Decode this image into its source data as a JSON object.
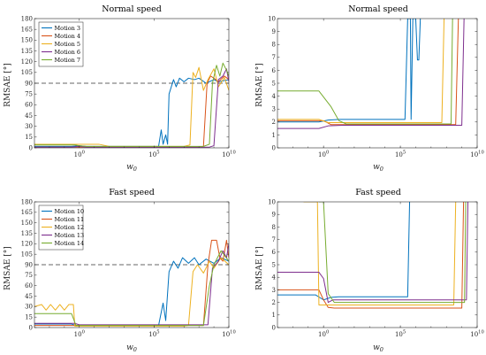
{
  "chart_data": [
    {
      "type": "line",
      "title": "Normal speed",
      "xlabel": "w0",
      "ylabel": "RMSAE [°]",
      "xscale": "log",
      "xlim": [
        0.001,
        10000000000
      ],
      "ylim": [
        0,
        180
      ],
      "yticks": [
        0,
        15,
        30,
        45,
        60,
        75,
        90,
        105,
        120,
        135,
        150,
        165,
        180
      ],
      "xticks": [
        {
          "value": 1,
          "base": "10",
          "exp": "0"
        },
        {
          "value": 100000,
          "base": "10",
          "exp": "5"
        },
        {
          "value": 10000000000,
          "base": "10",
          "exp": "10"
        }
      ],
      "reference_line": 90,
      "legend_position": "top-left",
      "series": [
        {
          "name": "Motion 3",
          "color": "#0072BD",
          "points": [
            [
              0.001,
              2
            ],
            [
              0.3,
              2
            ],
            [
              1,
              3
            ],
            [
              3,
              2
            ],
            [
              30,
              2
            ],
            [
              200000,
              2
            ],
            [
              300000,
              25
            ],
            [
              400000,
              5
            ],
            [
              600000,
              18
            ],
            [
              800000,
              5
            ],
            [
              1000000,
              75
            ],
            [
              2000000,
              95
            ],
            [
              3000000,
              85
            ],
            [
              5000000,
              97
            ],
            [
              10000000,
              92
            ],
            [
              20000000,
              97
            ],
            [
              50000000,
              95
            ],
            [
              100000000,
              97
            ],
            [
              300000000,
              90
            ],
            [
              1000000000,
              95
            ],
            [
              2000000000,
              92
            ],
            [
              10000000000,
              95
            ]
          ]
        },
        {
          "name": "Motion 4",
          "color": "#D95319",
          "points": [
            [
              0.001,
              1
            ],
            [
              100000000,
              1
            ],
            [
              200000000,
              2
            ],
            [
              350000000,
              90
            ],
            [
              600000000,
              100
            ],
            [
              1000000000,
              97
            ],
            [
              2000000000,
              92
            ],
            [
              5000000000,
              100
            ],
            [
              10000000000,
              95
            ]
          ]
        },
        {
          "name": "Motion 5",
          "color": "#EDB120",
          "points": [
            [
              0.001,
              5
            ],
            [
              20,
              5
            ],
            [
              100,
              2
            ],
            [
              10000000,
              2
            ],
            [
              25000000,
              4
            ],
            [
              40000000,
              105
            ],
            [
              60000000,
              98
            ],
            [
              100000000,
              112
            ],
            [
              200000000,
              80
            ],
            [
              400000000,
              95
            ],
            [
              1000000000,
              110
            ],
            [
              2000000000,
              85
            ],
            [
              5000000000,
              98
            ],
            [
              10000000000,
              80
            ]
          ]
        },
        {
          "name": "Motion 6",
          "color": "#7E2F8E",
          "points": [
            [
              0.001,
              1
            ],
            [
              0.3,
              1
            ],
            [
              1,
              2
            ],
            [
              3,
              1
            ],
            [
              500000000,
              1
            ],
            [
              1000000000,
              3
            ],
            [
              2000000000,
              95
            ],
            [
              4000000000,
              100
            ],
            [
              7000000000,
              110
            ],
            [
              10000000000,
              92
            ]
          ]
        },
        {
          "name": "Motion 7",
          "color": "#77AC30",
          "points": [
            [
              0.001,
              4
            ],
            [
              0.5,
              4
            ],
            [
              1,
              3
            ],
            [
              3,
              2
            ],
            [
              200000000,
              2
            ],
            [
              500000000,
              5
            ],
            [
              800000000,
              90
            ],
            [
              1500000000,
              115
            ],
            [
              2500000000,
              100
            ],
            [
              4000000000,
              118
            ],
            [
              7000000000,
              108
            ],
            [
              10000000000,
              100
            ]
          ]
        }
      ]
    },
    {
      "type": "line",
      "title": "Normal speed",
      "xlabel": "w0",
      "ylabel": "RMSAE [°]",
      "xscale": "log",
      "xlim": [
        0.001,
        10000000000
      ],
      "ylim": [
        0,
        10
      ],
      "yticks": [
        0,
        1,
        2,
        3,
        4,
        5,
        6,
        7,
        8,
        9,
        10
      ],
      "xticks": [
        {
          "value": 1,
          "base": "10",
          "exp": "0"
        },
        {
          "value": 100000,
          "base": "10",
          "exp": "5"
        },
        {
          "value": 10000000000,
          "base": "10",
          "exp": "10"
        }
      ],
      "series": [
        {
          "color": "#0072BD",
          "points": [
            [
              0.001,
              2.0
            ],
            [
              0.5,
              2.0
            ],
            [
              2,
              2.15
            ],
            [
              10,
              2.2
            ],
            [
              200000,
              2.2
            ],
            [
              300000,
              10
            ],
            [
              450000,
              10
            ],
            [
              500000,
              2.2
            ],
            [
              650000,
              10
            ],
            [
              1000000,
              10
            ],
            [
              1300000,
              6.8
            ],
            [
              1600000,
              6.8
            ],
            [
              2000000,
              10
            ]
          ]
        },
        {
          "color": "#D95319",
          "points": [
            [
              0.001,
              2.1
            ],
            [
              1,
              2.1
            ],
            [
              3,
              1.8
            ],
            [
              50,
              1.8
            ],
            [
              400000000,
              1.8
            ],
            [
              600000000,
              10
            ]
          ]
        },
        {
          "color": "#EDB120",
          "points": [
            [
              0.001,
              2.2
            ],
            [
              0.5,
              2.2
            ],
            [
              2,
              1.95
            ],
            [
              30,
              1.95
            ],
            [
              50000000,
              1.95
            ],
            [
              70000000,
              10
            ]
          ]
        },
        {
          "color": "#7E2F8E",
          "points": [
            [
              0.001,
              1.5
            ],
            [
              0.5,
              1.5
            ],
            [
              2,
              1.7
            ],
            [
              20,
              1.75
            ],
            [
              1000000000,
              1.75
            ],
            [
              1400000000,
              10
            ]
          ]
        },
        {
          "color": "#77AC30",
          "points": [
            [
              0.001,
              4.4
            ],
            [
              0.5,
              4.4
            ],
            [
              3,
              3.2
            ],
            [
              10,
              2.1
            ],
            [
              30,
              1.85
            ],
            [
              200000000,
              1.85
            ],
            [
              250000000,
              10
            ]
          ]
        }
      ]
    },
    {
      "type": "line",
      "title": "Fast speed",
      "xlabel": "w0",
      "ylabel": "RMSAE [°]",
      "xscale": "log",
      "xlim": [
        0.001,
        10000000000
      ],
      "ylim": [
        0,
        180
      ],
      "yticks": [
        0,
        15,
        30,
        45,
        60,
        75,
        90,
        105,
        120,
        135,
        150,
        165,
        180
      ],
      "xticks": [
        {
          "value": 1,
          "base": "10",
          "exp": "0"
        },
        {
          "value": 100000,
          "base": "10",
          "exp": "5"
        },
        {
          "value": 10000000000,
          "base": "10",
          "exp": "10"
        }
      ],
      "reference_line": 90,
      "legend_position": "top-left",
      "series": [
        {
          "name": "Motion 10",
          "color": "#0072BD",
          "points": [
            [
              0.001,
              5
            ],
            [
              0.3,
              5
            ],
            [
              0.6,
              3
            ],
            [
              200000,
              3
            ],
            [
              400000,
              35
            ],
            [
              600000,
              10
            ],
            [
              1000000,
              80
            ],
            [
              2000000,
              95
            ],
            [
              4000000,
              85
            ],
            [
              8000000,
              100
            ],
            [
              20000000,
              92
            ],
            [
              50000000,
              100
            ],
            [
              100000000,
              90
            ],
            [
              300000000,
              98
            ],
            [
              1000000000,
              92
            ],
            [
              3000000000,
              100
            ],
            [
              10000000000,
              95
            ]
          ]
        },
        {
          "name": "Motion 11",
          "color": "#D95319",
          "points": [
            [
              0.001,
              3
            ],
            [
              200000000,
              3
            ],
            [
              400000000,
              90
            ],
            [
              700000000,
              125
            ],
            [
              1500000000,
              125
            ],
            [
              2500000000,
              100
            ],
            [
              4000000000,
              95
            ],
            [
              7000000000,
              125
            ],
            [
              10000000000,
              100
            ]
          ]
        },
        {
          "name": "Motion 12",
          "color": "#EDB120",
          "points": [
            [
              0.001,
              30
            ],
            [
              0.003,
              33
            ],
            [
              0.006,
              25
            ],
            [
              0.012,
              33
            ],
            [
              0.025,
              25
            ],
            [
              0.05,
              33
            ],
            [
              0.1,
              25
            ],
            [
              0.2,
              33
            ],
            [
              0.4,
              33
            ],
            [
              0.5,
              2
            ],
            [
              10000000,
              2
            ],
            [
              20000000,
              3
            ],
            [
              40000000,
              80
            ],
            [
              80000000,
              90
            ],
            [
              200000000,
              78
            ],
            [
              500000000,
              95
            ],
            [
              1000000000,
              85
            ],
            [
              3000000000,
              100
            ],
            [
              10000000000,
              90
            ]
          ]
        },
        {
          "name": "Motion 13",
          "color": "#7E2F8E",
          "points": [
            [
              0.001,
              6
            ],
            [
              0.5,
              6
            ],
            [
              1,
              4
            ],
            [
              400000000,
              4
            ],
            [
              800000000,
              85
            ],
            [
              2000000000,
              95
            ],
            [
              4000000000,
              110
            ],
            [
              7000000000,
              100
            ],
            [
              10000000000,
              120
            ]
          ]
        },
        {
          "name": "Motion 14",
          "color": "#77AC30",
          "points": [
            [
              0.001,
              20
            ],
            [
              0.3,
              20
            ],
            [
              0.6,
              3
            ],
            [
              200000000,
              3
            ],
            [
              500000000,
              60
            ],
            [
              1000000000,
              90
            ],
            [
              3000000000,
              110
            ],
            [
              10000000000,
              95
            ]
          ]
        }
      ]
    },
    {
      "type": "line",
      "title": "Fast speed",
      "xlabel": "w0",
      "ylabel": "RMSAE [°]",
      "xscale": "log",
      "xlim": [
        0.001,
        10000000000
      ],
      "ylim": [
        0,
        10
      ],
      "yticks": [
        0,
        1,
        2,
        3,
        4,
        5,
        6,
        7,
        8,
        9,
        10
      ],
      "xticks": [
        {
          "value": 1,
          "base": "10",
          "exp": "0"
        },
        {
          "value": 100000,
          "base": "10",
          "exp": "5"
        },
        {
          "value": 10000000000,
          "base": "10",
          "exp": "10"
        }
      ],
      "series": [
        {
          "color": "#0072BD",
          "points": [
            [
              0.001,
              2.6
            ],
            [
              0.3,
              2.6
            ],
            [
              1,
              2.2
            ],
            [
              3,
              2.4
            ],
            [
              10,
              2.45
            ],
            [
              300000,
              2.45
            ],
            [
              400000,
              10
            ]
          ]
        },
        {
          "color": "#D95319",
          "points": [
            [
              0.001,
              3.0
            ],
            [
              0.5,
              3.0
            ],
            [
              1,
              2.2
            ],
            [
              2,
              1.6
            ],
            [
              5,
              1.55
            ],
            [
              1000000000,
              1.55
            ],
            [
              1300000000,
              10
            ]
          ]
        },
        {
          "color": "#EDB120",
          "points": [
            [
              0.05,
              10
            ],
            [
              0.4,
              10
            ],
            [
              0.5,
              1.8
            ],
            [
              5,
              1.8
            ],
            [
              300000000,
              1.8
            ],
            [
              400000000,
              10
            ]
          ]
        },
        {
          "color": "#7E2F8E",
          "points": [
            [
              0.001,
              4.4
            ],
            [
              0.5,
              4.4
            ],
            [
              1,
              3.9
            ],
            [
              2,
              2.0
            ],
            [
              4,
              2.2
            ],
            [
              10,
              2.2
            ],
            [
              2000000000,
              2.2
            ],
            [
              2500000000,
              10
            ]
          ]
        },
        {
          "color": "#77AC30",
          "points": [
            [
              0.5,
              10
            ],
            [
              1,
              10
            ],
            [
              2,
              2.7
            ],
            [
              5,
              2.0
            ],
            [
              1500000000,
              2.0
            ],
            [
              1800000000,
              10
            ]
          ]
        }
      ]
    }
  ]
}
